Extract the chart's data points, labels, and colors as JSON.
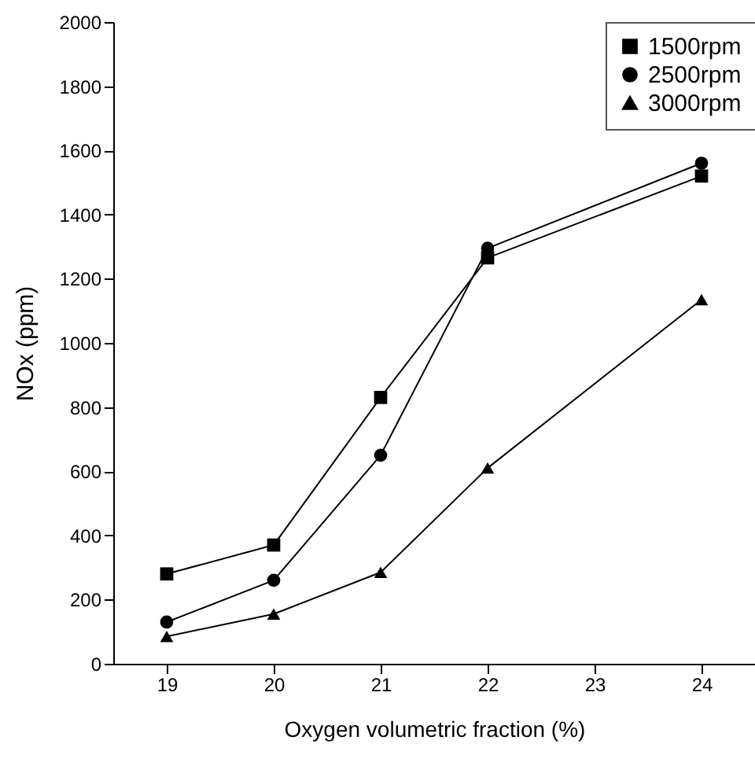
{
  "chart_data": {
    "type": "line",
    "xlabel": "Oxygen volumetric fraction (%)",
    "ylabel": "NOx (ppm)",
    "x": [
      19,
      20,
      21,
      22,
      24
    ],
    "series": [
      {
        "name": "1500rpm",
        "color": "#000000",
        "marker": "square",
        "values": [
          280,
          370,
          830,
          1265,
          1520
        ]
      },
      {
        "name": "2500rpm",
        "color": "#000000",
        "marker": "circle",
        "values": [
          130,
          260,
          650,
          1295,
          1560
        ]
      },
      {
        "name": "3000rpm",
        "color": "#000000",
        "marker": "triangle",
        "values": [
          85,
          155,
          285,
          610,
          1135
        ]
      }
    ],
    "xlim": [
      18.5,
      24.5
    ],
    "xticks": [
      19,
      20,
      21,
      22,
      23,
      24
    ],
    "ylim": [
      0,
      2000
    ],
    "yticks": [
      0,
      200,
      400,
      600,
      800,
      1000,
      1200,
      1400,
      1600,
      1800,
      2000
    ],
    "grid": false,
    "legend": "top right",
    "line_style": "solid"
  }
}
